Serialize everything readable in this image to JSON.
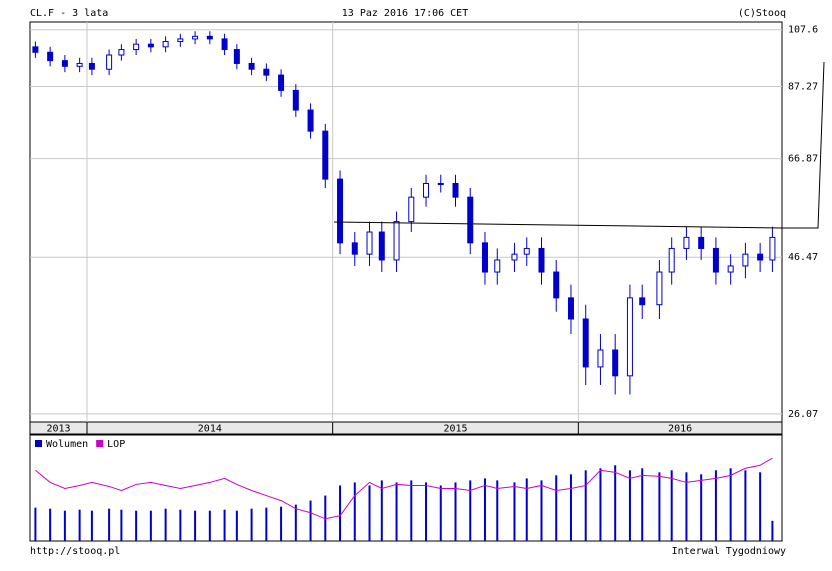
{
  "chart_data": [
    {
      "type": "candlestick",
      "title": "CL.F - 3 lata",
      "subtitle": "13 Paz 2016 17:06 CET",
      "source": "(C)Stooq",
      "color": "#0000cc",
      "up_fill": "#ffffff",
      "log": true,
      "grid": true,
      "xlim": [
        2013.768,
        2016.829
      ],
      "xticks": [
        2014,
        2015,
        2016
      ],
      "year_labels": [
        "2013",
        "2014",
        "2015",
        "2016"
      ],
      "ylim": [
        25.3,
        110.7
      ],
      "yticks": [
        107.6,
        87.27,
        66.87,
        46.47,
        26.07
      ],
      "x": [
        2013.79,
        2013.85,
        2013.91,
        2013.97,
        2014.02,
        2014.09,
        2014.14,
        2014.2,
        2014.26,
        2014.32,
        2014.38,
        2014.44,
        2014.5,
        2014.56,
        2014.61,
        2014.67,
        2014.73,
        2014.79,
        2014.85,
        2014.91,
        2014.97,
        2015.03,
        2015.09,
        2015.15,
        2015.2,
        2015.26,
        2015.32,
        2015.38,
        2015.44,
        2015.5,
        2015.56,
        2015.62,
        2015.67,
        2015.74,
        2015.79,
        2015.85,
        2015.91,
        2015.97,
        2016.03,
        2016.09,
        2016.15,
        2016.21,
        2016.26,
        2016.33,
        2016.38,
        2016.44,
        2016.5,
        2016.56,
        2016.62,
        2016.68,
        2016.74,
        2016.79
      ],
      "open": [
        101,
        99,
        96,
        94,
        95,
        93,
        98,
        100,
        102,
        101,
        103,
        104,
        105,
        104,
        100,
        95,
        93,
        91,
        86,
        80,
        74,
        62,
        49,
        47,
        51,
        46,
        53,
        58,
        61,
        61,
        58,
        49,
        44,
        46,
        47,
        48,
        44,
        40,
        37,
        31,
        33,
        30,
        40,
        39,
        44,
        48,
        50,
        48,
        44,
        45,
        47,
        46
      ],
      "high": [
        103,
        101,
        98,
        97,
        97,
        100,
        102,
        104,
        104,
        105,
        106,
        107,
        107,
        106,
        102,
        97,
        95,
        93,
        88,
        82,
        76,
        64,
        51,
        53,
        53,
        55,
        60,
        63,
        63,
        63,
        60,
        51,
        48,
        49,
        50,
        50,
        46,
        42,
        39,
        35,
        35,
        42,
        42,
        46,
        50,
        52,
        52,
        50,
        47,
        49,
        49,
        52
      ],
      "low": [
        97,
        94,
        92,
        92,
        91,
        91,
        96,
        98,
        99,
        99,
        101,
        102,
        102,
        98,
        93,
        91,
        89,
        84,
        78,
        72,
        60,
        47,
        45,
        45,
        44,
        44,
        51,
        56,
        59,
        56,
        47,
        42,
        42,
        44,
        45,
        42,
        38,
        35,
        29,
        29,
        28,
        28,
        37,
        37,
        42,
        46,
        46,
        42,
        42,
        43,
        44,
        44
      ],
      "close": [
        99,
        96,
        94,
        95,
        93,
        98,
        100,
        102,
        101,
        103,
        104,
        105,
        104,
        100,
        95,
        93,
        91,
        86,
        80,
        74,
        62,
        49,
        47,
        51,
        46,
        53,
        58,
        61,
        61,
        58,
        49,
        44,
        46,
        47,
        48,
        44,
        40,
        37,
        31,
        33,
        30,
        40,
        39,
        44,
        48,
        50,
        48,
        44,
        45,
        47,
        46,
        50
      ]
    },
    {
      "type": "volume",
      "ylim": [
        0,
        100
      ],
      "series": [
        {
          "name": "Wolumen",
          "color": "#0000cc",
          "values": [
            33,
            32,
            30,
            31,
            30,
            32,
            31,
            30,
            30,
            32,
            31,
            30,
            30,
            31,
            30,
            32,
            33,
            34,
            36,
            40,
            45,
            55,
            58,
            55,
            60,
            58,
            60,
            58,
            55,
            58,
            60,
            62,
            60,
            58,
            62,
            60,
            65,
            66,
            70,
            72,
            75,
            70,
            72,
            68,
            70,
            68,
            66,
            70,
            72,
            70,
            68,
            20
          ]
        },
        {
          "name": "LOP",
          "color": "#cc00cc",
          "values": [
            70,
            58,
            52,
            55,
            58,
            54,
            50,
            56,
            58,
            55,
            52,
            55,
            58,
            62,
            56,
            50,
            45,
            40,
            32,
            28,
            22,
            25,
            45,
            58,
            52,
            56,
            55,
            55,
            52,
            52,
            50,
            55,
            52,
            54,
            52,
            55,
            50,
            52,
            55,
            70,
            68,
            62,
            65,
            64,
            62,
            58,
            60,
            62,
            65,
            72,
            75,
            82
          ]
        }
      ]
    }
  ],
  "footer": {
    "url": "http://stooq.pl",
    "interval": "Interwal Tygodniowy"
  }
}
